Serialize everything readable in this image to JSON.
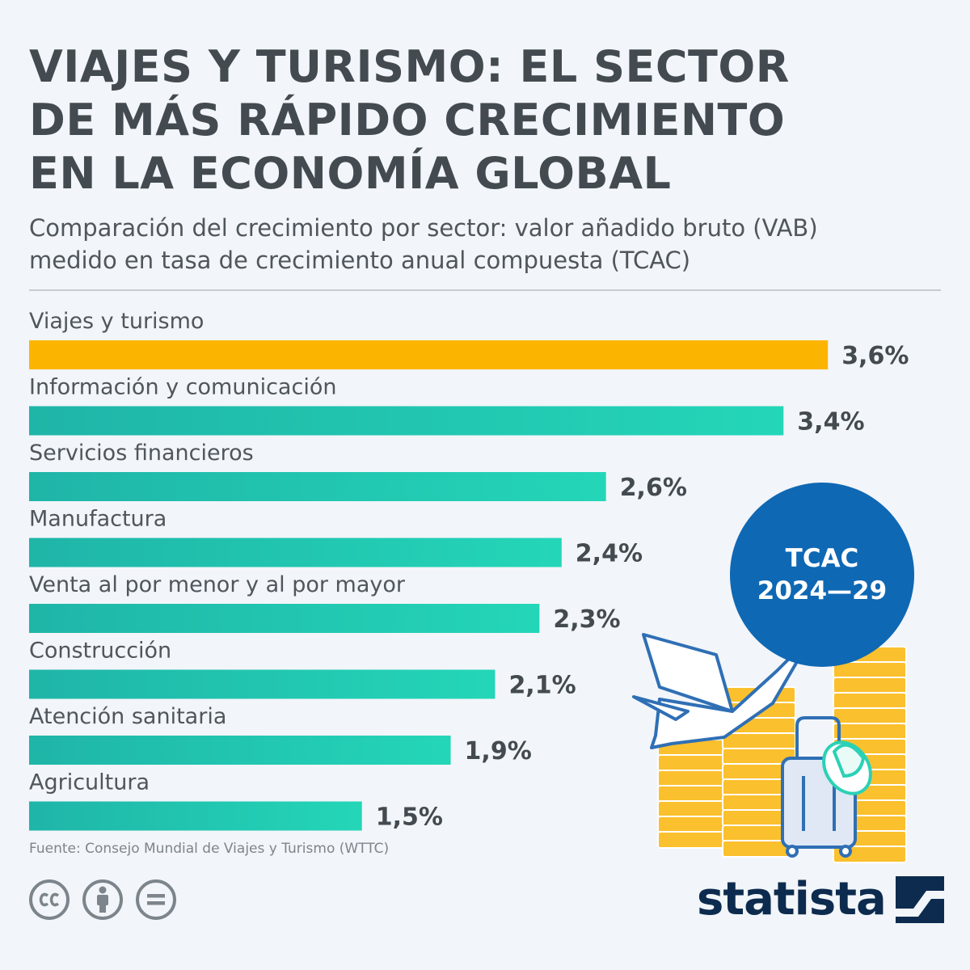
{
  "header": {
    "title_lines": [
      "VIAJES Y TURISMO: EL SECTOR",
      "DE MÁS RÁPIDO CRECIMIENTO",
      "EN LA ECONOMÍA GLOBAL"
    ],
    "subtitle_lines": [
      "Comparación del crecimiento por sector: valor añadido bruto (VAB)",
      "medido en tasa de crecimiento anual compuesta (TCAC)"
    ]
  },
  "badge": {
    "line1": "TCAC",
    "line2": "2024—29"
  },
  "chart_data": {
    "type": "bar",
    "orientation": "horizontal",
    "title": "VIAJES Y TURISMO: EL SECTOR DE MÁS RÁPIDO CRECIMIENTO EN LA ECONOMÍA GLOBAL",
    "xlabel": "",
    "ylabel": "",
    "grid": false,
    "categories": [
      "Viajes y turismo",
      "Información y comunicación",
      "Servicios financieros",
      "Manufactura",
      "Venta al por menor y al por mayor",
      "Construcción",
      "Atención sanitaria",
      "Agricultura"
    ],
    "values": [
      3.6,
      3.4,
      2.6,
      2.4,
      2.3,
      2.1,
      1.9,
      1.5
    ],
    "value_labels": [
      "3,6%",
      "3,4%",
      "2,6%",
      "2,4%",
      "2,3%",
      "2,1%",
      "1,9%",
      "1,5%"
    ],
    "unit": "%",
    "highlight_color": "#fbb500",
    "bar_color": "#24c4b0"
  },
  "footer": {
    "source": "Fuente: Consejo Mundial de Viajes y Turismo (WTTC)",
    "brand": "statista",
    "license_icons": [
      "cc-icon",
      "attribution-icon",
      "no-derivatives-icon"
    ]
  }
}
